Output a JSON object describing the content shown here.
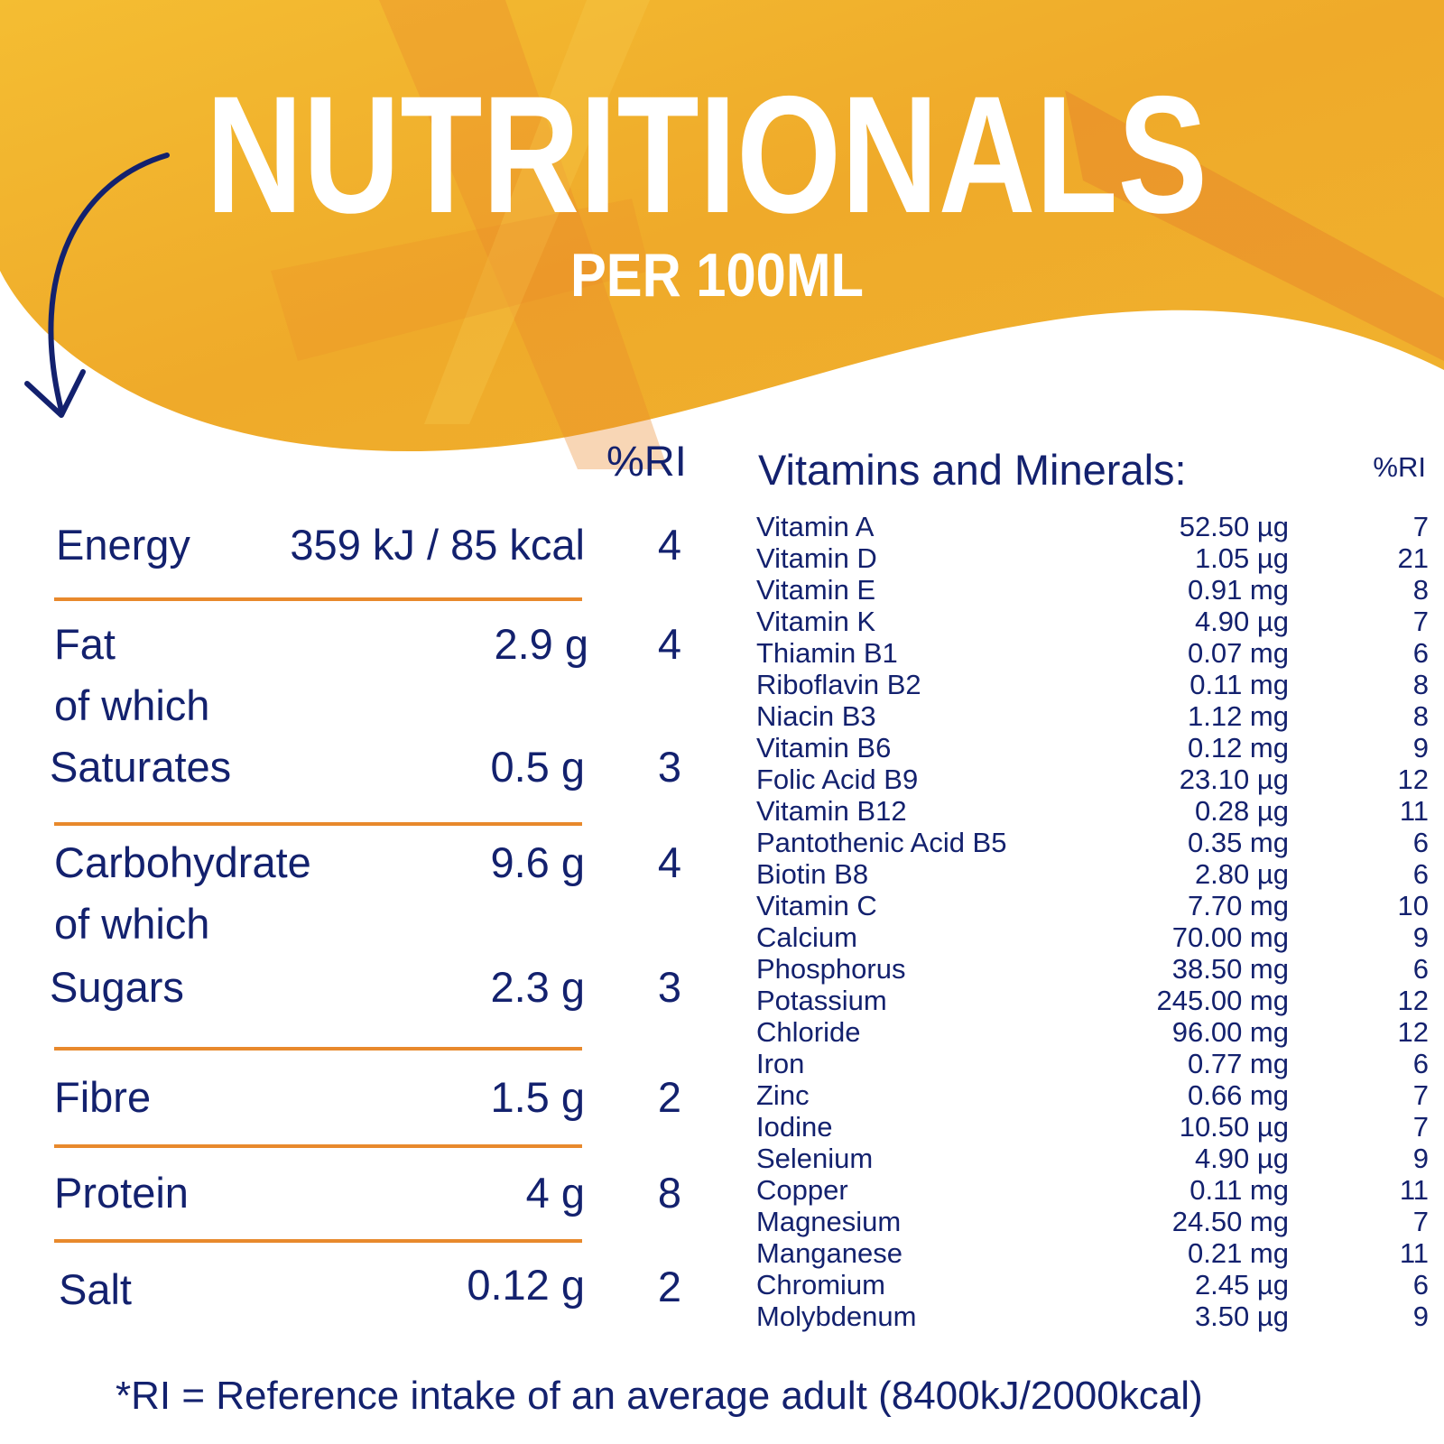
{
  "header": {
    "title": "NUTRITIONALS",
    "subtitle": "PER 100ML"
  },
  "colors": {
    "navy": "#13216e",
    "orange_rule": "#e8892c",
    "header_yellow": "#f2b42c",
    "header_orange": "#e9822a"
  },
  "nutrition": {
    "ri_header": "%RI",
    "rows": [
      {
        "label": "Energy",
        "amount": "359 kJ / 85 kcal",
        "ri": "4"
      },
      {
        "label": "Fat",
        "amount": "2.9 g",
        "ri": "4"
      },
      {
        "label": "of which",
        "amount": "",
        "ri": ""
      },
      {
        "label": "Saturates",
        "amount": "0.5 g",
        "ri": "3"
      },
      {
        "label": "Carbohydrate",
        "amount": "9.6 g",
        "ri": "4"
      },
      {
        "label": "of which",
        "amount": "",
        "ri": ""
      },
      {
        "label": "Sugars",
        "amount": "2.3 g",
        "ri": "3"
      },
      {
        "label": "Fibre",
        "amount": "1.5 g",
        "ri": "2"
      },
      {
        "label": "Protein",
        "amount": "4 g",
        "ri": "8"
      },
      {
        "label": "Salt",
        "amount": "0.12 g",
        "ri": "2"
      }
    ]
  },
  "vitamins": {
    "title": "Vitamins and Minerals:",
    "ri_header": "%RI",
    "rows": [
      {
        "name": "Vitamin A",
        "amount": "52.50 µg",
        "ri": "7"
      },
      {
        "name": "Vitamin D",
        "amount": "1.05 µg",
        "ri": "21"
      },
      {
        "name": "Vitamin E",
        "amount": "0.91 mg",
        "ri": "8"
      },
      {
        "name": "Vitamin K",
        "amount": "4.90 µg",
        "ri": "7"
      },
      {
        "name": "Thiamin B1",
        "amount": "0.07 mg",
        "ri": "6"
      },
      {
        "name": "Riboflavin B2",
        "amount": "0.11 mg",
        "ri": "8"
      },
      {
        "name": "Niacin B3",
        "amount": "1.12 mg",
        "ri": "8"
      },
      {
        "name": "Vitamin B6",
        "amount": "0.12 mg",
        "ri": "9"
      },
      {
        "name": "Folic Acid B9",
        "amount": "23.10 µg",
        "ri": "12"
      },
      {
        "name": "Vitamin B12",
        "amount": "0.28 µg",
        "ri": "11"
      },
      {
        "name": "Pantothenic Acid B5",
        "amount": "0.35 mg",
        "ri": "6"
      },
      {
        "name": "Biotin B8",
        "amount": "2.80 µg",
        "ri": "6"
      },
      {
        "name": "Vitamin C",
        "amount": "7.70 mg",
        "ri": "10"
      },
      {
        "name": "Calcium",
        "amount": "70.00 mg",
        "ri": "9"
      },
      {
        "name": "Phosphorus",
        "amount": "38.50 mg",
        "ri": "6"
      },
      {
        "name": "Potassium",
        "amount": "245.00 mg",
        "ri": "12"
      },
      {
        "name": "Chloride",
        "amount": "96.00 mg",
        "ri": "12"
      },
      {
        "name": "Iron",
        "amount": "0.77 mg",
        "ri": "6"
      },
      {
        "name": "Zinc",
        "amount": "0.66 mg",
        "ri": "7"
      },
      {
        "name": "Iodine",
        "amount": "10.50 µg",
        "ri": "7"
      },
      {
        "name": "Selenium",
        "amount": "4.90 µg",
        "ri": "9"
      },
      {
        "name": "Copper",
        "amount": "0.11 mg",
        "ri": "11"
      },
      {
        "name": "Magnesium",
        "amount": "24.50 mg",
        "ri": "7"
      },
      {
        "name": "Manganese",
        "amount": "0.21 mg",
        "ri": "11"
      },
      {
        "name": "Chromium",
        "amount": "2.45 µg",
        "ri": "6"
      },
      {
        "name": "Molybdenum",
        "amount": "3.50 µg",
        "ri": "9"
      }
    ]
  },
  "footnote": "*RI = Reference intake of an average adult (8400kJ/2000kcal)"
}
